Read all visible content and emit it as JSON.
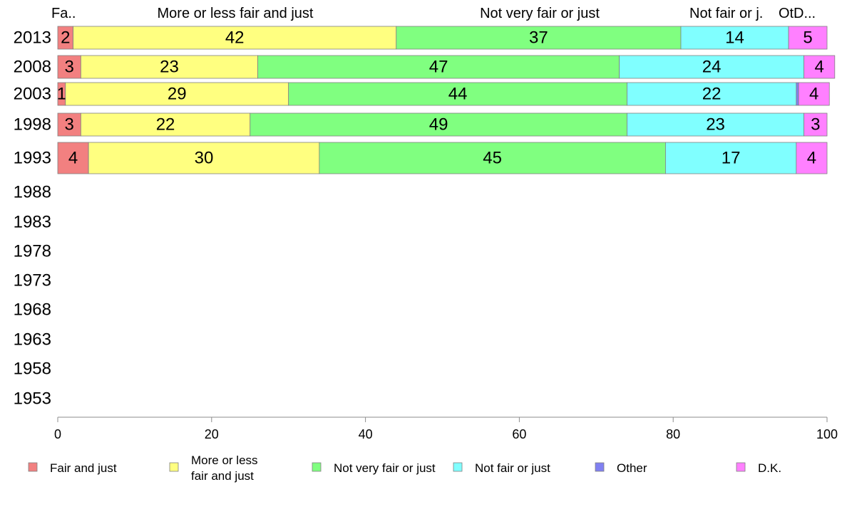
{
  "chart_data": {
    "type": "bar",
    "orientation": "horizontal",
    "stacked": true,
    "categories": [
      "2013",
      "2008",
      "2003",
      "1998",
      "1993",
      "1988",
      "1983",
      "1978",
      "1973",
      "1968",
      "1963",
      "1958",
      "1953"
    ],
    "series": [
      {
        "name": "Fair and just",
        "color": "#f28080",
        "values": [
          2,
          3,
          1,
          3,
          4,
          null,
          null,
          null,
          null,
          null,
          null,
          null,
          null
        ],
        "shown_labels": [
          "2",
          "3",
          "1",
          "3",
          "4",
          "",
          "",
          "",
          "",
          "",
          "",
          "",
          ""
        ]
      },
      {
        "name": "More or less fair and just",
        "color": "#ffff80",
        "values": [
          42,
          23,
          29,
          22,
          30,
          null,
          null,
          null,
          null,
          null,
          null,
          null,
          null
        ],
        "shown_labels": [
          "42",
          "23",
          "29",
          "22",
          "30",
          "",
          "",
          "",
          "",
          "",
          "",
          "",
          ""
        ]
      },
      {
        "name": "Not very fair or just",
        "color": "#80ff80",
        "values": [
          37,
          47,
          44,
          49,
          45,
          null,
          null,
          null,
          null,
          null,
          null,
          null,
          null
        ],
        "shown_labels": [
          "37",
          "47",
          "44",
          "49",
          "45",
          "",
          "",
          "",
          "",
          "",
          "",
          "",
          ""
        ]
      },
      {
        "name": "Not fair or just",
        "color": "#80ffff",
        "values": [
          14,
          24,
          22,
          23,
          17,
          null,
          null,
          null,
          null,
          null,
          null,
          null,
          null
        ],
        "shown_labels": [
          "14",
          "24",
          "22",
          "23",
          "17",
          "",
          "",
          "",
          "",
          "",
          "",
          "",
          ""
        ]
      },
      {
        "name": "Other",
        "color": "#8080f2",
        "values": [
          0,
          0,
          0.3,
          0,
          0,
          null,
          null,
          null,
          null,
          null,
          null,
          null,
          null
        ],
        "shown_labels": [
          "",
          "",
          "",
          "",
          "",
          "",
          "",
          "",
          "",
          "",
          "",
          "",
          ""
        ]
      },
      {
        "name": "D.K.",
        "color": "#ff80ff",
        "values": [
          5,
          4,
          4,
          3,
          4,
          null,
          null,
          null,
          null,
          null,
          null,
          null,
          null
        ],
        "shown_labels": [
          "5",
          "4",
          "4",
          "3",
          "4",
          "",
          "",
          "",
          "",
          "",
          "",
          "",
          ""
        ]
      }
    ],
    "header_labels": [
      "Fa..",
      "More or less fair and just",
      "Not very fair or just",
      "Not fair or j.",
      "Ot.",
      "D..."
    ],
    "legend_labels": [
      "Fair and just",
      "More or less|fair and just",
      "Not very fair or just",
      "Not fair or just",
      "Other",
      "D.K."
    ],
    "xlim": [
      0,
      100
    ],
    "xticks": [
      0,
      20,
      40,
      60,
      80,
      100
    ],
    "grid": false,
    "legend_position": "bottom"
  }
}
